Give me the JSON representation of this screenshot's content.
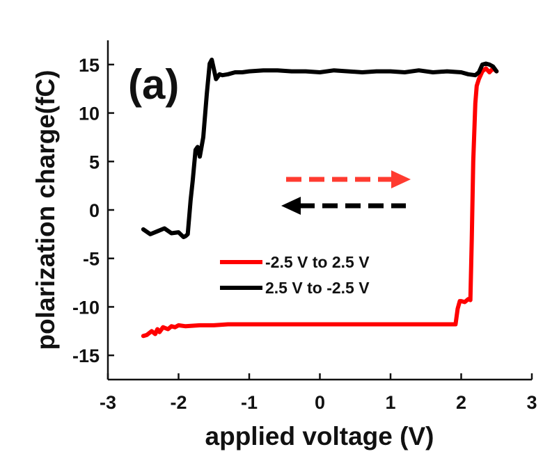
{
  "chart_data": {
    "type": "line",
    "panel_label": "(a)",
    "xlabel": "applied voltage (V)",
    "ylabel": "polarization charge(fC)",
    "xlim": [
      -3,
      3
    ],
    "ylim": [
      -17.5,
      17.5
    ],
    "x_ticks": [
      -3,
      -2,
      -1,
      0,
      1,
      2,
      3
    ],
    "y_ticks": [
      -15,
      -10,
      -5,
      0,
      5,
      10,
      15
    ],
    "x_tick_labels": [
      "-3",
      "-2",
      "-1",
      "0",
      "1",
      "2",
      "3"
    ],
    "y_tick_labels": [
      "-15",
      "-10",
      "-5",
      "0",
      "5",
      "10",
      "15"
    ],
    "grid": false,
    "legend_position": "lower-center",
    "series": [
      {
        "name": "-2.5 V to 2.5 V",
        "color": "#ff0000",
        "x": [
          -2.5,
          -2.45,
          -2.38,
          -2.33,
          -2.3,
          -2.27,
          -2.22,
          -2.15,
          -2.1,
          -2.05,
          -2.0,
          -1.9,
          -1.7,
          -1.5,
          -1.3,
          -1.1,
          -0.9,
          -0.7,
          -0.5,
          -0.3,
          -0.1,
          0.1,
          0.3,
          0.5,
          0.7,
          0.9,
          1.1,
          1.3,
          1.5,
          1.7,
          1.85,
          1.92,
          1.95,
          1.98,
          2.0,
          2.05,
          2.1,
          2.13,
          2.15,
          2.17,
          2.2,
          2.22,
          2.25,
          2.3,
          2.35,
          2.4,
          2.45,
          2.5
        ],
        "y": [
          -13.0,
          -12.9,
          -12.5,
          -12.8,
          -12.3,
          -12.6,
          -12.1,
          -12.3,
          -12.0,
          -12.1,
          -11.9,
          -12.0,
          -11.9,
          -11.9,
          -11.8,
          -11.8,
          -11.8,
          -11.8,
          -11.8,
          -11.8,
          -11.8,
          -11.8,
          -11.8,
          -11.8,
          -11.8,
          -11.8,
          -11.8,
          -11.8,
          -11.8,
          -11.8,
          -11.8,
          -11.8,
          -10.2,
          -9.4,
          -9.4,
          -9.5,
          -9.2,
          -9.3,
          -3.0,
          5.0,
          11.0,
          12.8,
          13.5,
          14.3,
          14.6,
          14.2,
          14.6,
          14.3
        ]
      },
      {
        "name": "2.5 V to -2.5 V",
        "color": "#000000",
        "x": [
          2.5,
          2.45,
          2.4,
          2.35,
          2.3,
          2.25,
          2.2,
          2.1,
          2.0,
          1.8,
          1.6,
          1.4,
          1.2,
          1.0,
          0.8,
          0.6,
          0.4,
          0.2,
          0.0,
          -0.2,
          -0.4,
          -0.6,
          -0.8,
          -1.0,
          -1.1,
          -1.2,
          -1.3,
          -1.38,
          -1.42,
          -1.47,
          -1.5,
          -1.53,
          -1.56,
          -1.6,
          -1.65,
          -1.7,
          -1.73,
          -1.76,
          -1.8,
          -1.83,
          -1.87,
          -1.9,
          -1.93,
          -2.0,
          -2.1,
          -2.2,
          -2.3,
          -2.4,
          -2.5
        ],
        "y": [
          14.3,
          14.8,
          15.0,
          15.1,
          15.0,
          14.2,
          13.9,
          14.0,
          14.2,
          14.3,
          14.2,
          14.4,
          14.2,
          14.3,
          14.3,
          14.2,
          14.3,
          14.4,
          14.2,
          14.3,
          14.3,
          14.4,
          14.4,
          14.3,
          14.2,
          14.2,
          14.0,
          13.9,
          14.0,
          13.5,
          14.5,
          15.5,
          15.1,
          12.0,
          7.5,
          5.5,
          6.5,
          6.2,
          3.0,
          1.0,
          -2.5,
          -2.7,
          -2.8,
          -2.3,
          -2.4,
          -1.9,
          -2.2,
          -2.5,
          -2.0
        ]
      }
    ],
    "annotations": [
      {
        "kind": "dashed-arrow",
        "direction": "right",
        "color": "#ff3b30"
      },
      {
        "kind": "dashed-arrow",
        "direction": "left",
        "color": "#000000"
      }
    ]
  }
}
